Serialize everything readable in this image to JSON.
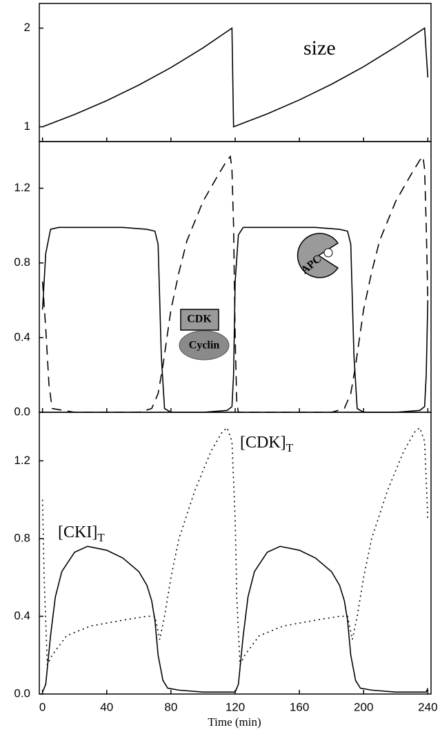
{
  "chart_data": [
    {
      "type": "line",
      "xlim": [
        -2,
        242
      ],
      "ylim": [
        0.85,
        2.25
      ],
      "yticks": [
        1,
        2
      ],
      "annotations": [
        "size"
      ],
      "series": [
        {
          "color": "#000000",
          "dash": "solid",
          "x": [
            0,
            20,
            40,
            60,
            80,
            100,
            118,
            119,
            140,
            160,
            180,
            200,
            220,
            238,
            240
          ],
          "values": [
            1,
            1.125,
            1.265,
            1.423,
            1.6,
            1.8,
            2,
            1,
            1.131,
            1.272,
            1.431,
            1.609,
            1.81,
            2,
            1.5
          ]
        }
      ]
    },
    {
      "type": "line",
      "xlim": [
        -2,
        242
      ],
      "ylim": [
        0,
        1.45
      ],
      "yticks": [
        {
          "value": 0,
          "label": "0.0"
        },
        {
          "value": 0.4,
          "label": "0.4"
        },
        {
          "value": 0.8,
          "label": "0.8"
        },
        {
          "value": 1.2,
          "label": "1.2"
        }
      ],
      "annotations": [
        "CDK",
        "Cyclin",
        "APC"
      ],
      "series": [
        {
          "color": "#000000",
          "dash": "solid",
          "x": [
            0,
            2,
            5,
            10,
            30,
            50,
            65,
            70,
            72,
            74,
            76,
            80,
            100,
            115,
            118,
            119,
            120,
            122,
            125,
            130,
            150,
            170,
            185,
            190,
            192,
            194,
            196,
            200,
            220,
            235,
            238,
            239,
            240
          ],
          "values": [
            0.55,
            0.85,
            0.98,
            0.99,
            0.99,
            0.99,
            0.98,
            0.97,
            0.9,
            0.3,
            0.02,
            0,
            0,
            0.01,
            0.03,
            0.2,
            0.7,
            0.95,
            0.99,
            0.99,
            0.99,
            0.99,
            0.98,
            0.97,
            0.9,
            0.3,
            0.02,
            0,
            0,
            0.01,
            0.03,
            0.2,
            0.6
          ]
        },
        {
          "color": "#000000",
          "dash": "dashed",
          "x": [
            0,
            2,
            4,
            6,
            20,
            60,
            68,
            72,
            75,
            80,
            85,
            90,
            100,
            110,
            115,
            117,
            118,
            119,
            120,
            121,
            122,
            140,
            180,
            188,
            192,
            195,
            200,
            205,
            210,
            220,
            230,
            235,
            237,
            238,
            239,
            240
          ],
          "values": [
            0.7,
            0.45,
            0.15,
            0.02,
            0,
            0,
            0.02,
            0.1,
            0.25,
            0.55,
            0.75,
            0.92,
            1.13,
            1.28,
            1.35,
            1.37,
            1.3,
            1.0,
            0.4,
            0.05,
            0,
            0,
            0,
            0.02,
            0.1,
            0.25,
            0.55,
            0.75,
            0.92,
            1.13,
            1.28,
            1.35,
            1.37,
            1.3,
            1.0,
            0.6
          ]
        }
      ]
    },
    {
      "type": "line",
      "xlim": [
        -2,
        242
      ],
      "ylim": [
        0,
        1.45
      ],
      "xlabel": "Time (min)",
      "xticks": [
        0,
        40,
        80,
        120,
        160,
        200,
        240
      ],
      "yticks": [
        {
          "value": 0,
          "label": "0.0"
        },
        {
          "value": 0.4,
          "label": "0.4"
        },
        {
          "value": 0.8,
          "label": "0.8"
        },
        {
          "value": 1.2,
          "label": "1.2"
        }
      ],
      "annotations": [
        {
          "text": "[CDK]",
          "sub": "T"
        },
        {
          "text": "[CKI]",
          "sub": "T"
        }
      ],
      "series": [
        {
          "color": "#000000",
          "dash": "solid",
          "x": [
            0,
            2,
            5,
            8,
            12,
            20,
            28,
            40,
            50,
            60,
            65,
            68,
            70,
            72,
            75,
            78,
            85,
            100,
            115,
            119,
            120,
            122,
            125,
            128,
            132,
            140,
            148,
            160,
            170,
            180,
            185,
            188,
            190,
            192,
            195,
            198,
            205,
            220,
            235,
            239,
            240
          ],
          "values": [
            0.01,
            0.05,
            0.3,
            0.5,
            0.63,
            0.73,
            0.76,
            0.74,
            0.7,
            0.63,
            0.56,
            0.48,
            0.38,
            0.2,
            0.07,
            0.03,
            0.02,
            0.01,
            0.01,
            0.01,
            0.01,
            0.05,
            0.3,
            0.5,
            0.63,
            0.73,
            0.76,
            0.74,
            0.7,
            0.63,
            0.56,
            0.48,
            0.38,
            0.2,
            0.07,
            0.03,
            0.02,
            0.01,
            0.01,
            0.01,
            0.03
          ]
        },
        {
          "color": "#000000",
          "dash": "dotted",
          "x": [
            0,
            1,
            3,
            6,
            15,
            30,
            50,
            65,
            70,
            73,
            76,
            80,
            85,
            95,
            105,
            112,
            115,
            118,
            120,
            121,
            123,
            126,
            135,
            150,
            170,
            185,
            190,
            193,
            196,
            200,
            205,
            215,
            225,
            232,
            235,
            238,
            240
          ],
          "values": [
            1.0,
            0.6,
            0.15,
            0.2,
            0.3,
            0.35,
            0.38,
            0.4,
            0.4,
            0.28,
            0.4,
            0.6,
            0.8,
            1.05,
            1.25,
            1.35,
            1.37,
            1.3,
            0.9,
            0.5,
            0.15,
            0.2,
            0.3,
            0.35,
            0.38,
            0.4,
            0.4,
            0.28,
            0.4,
            0.6,
            0.8,
            1.05,
            1.25,
            1.35,
            1.37,
            1.3,
            0.9
          ]
        }
      ]
    }
  ]
}
